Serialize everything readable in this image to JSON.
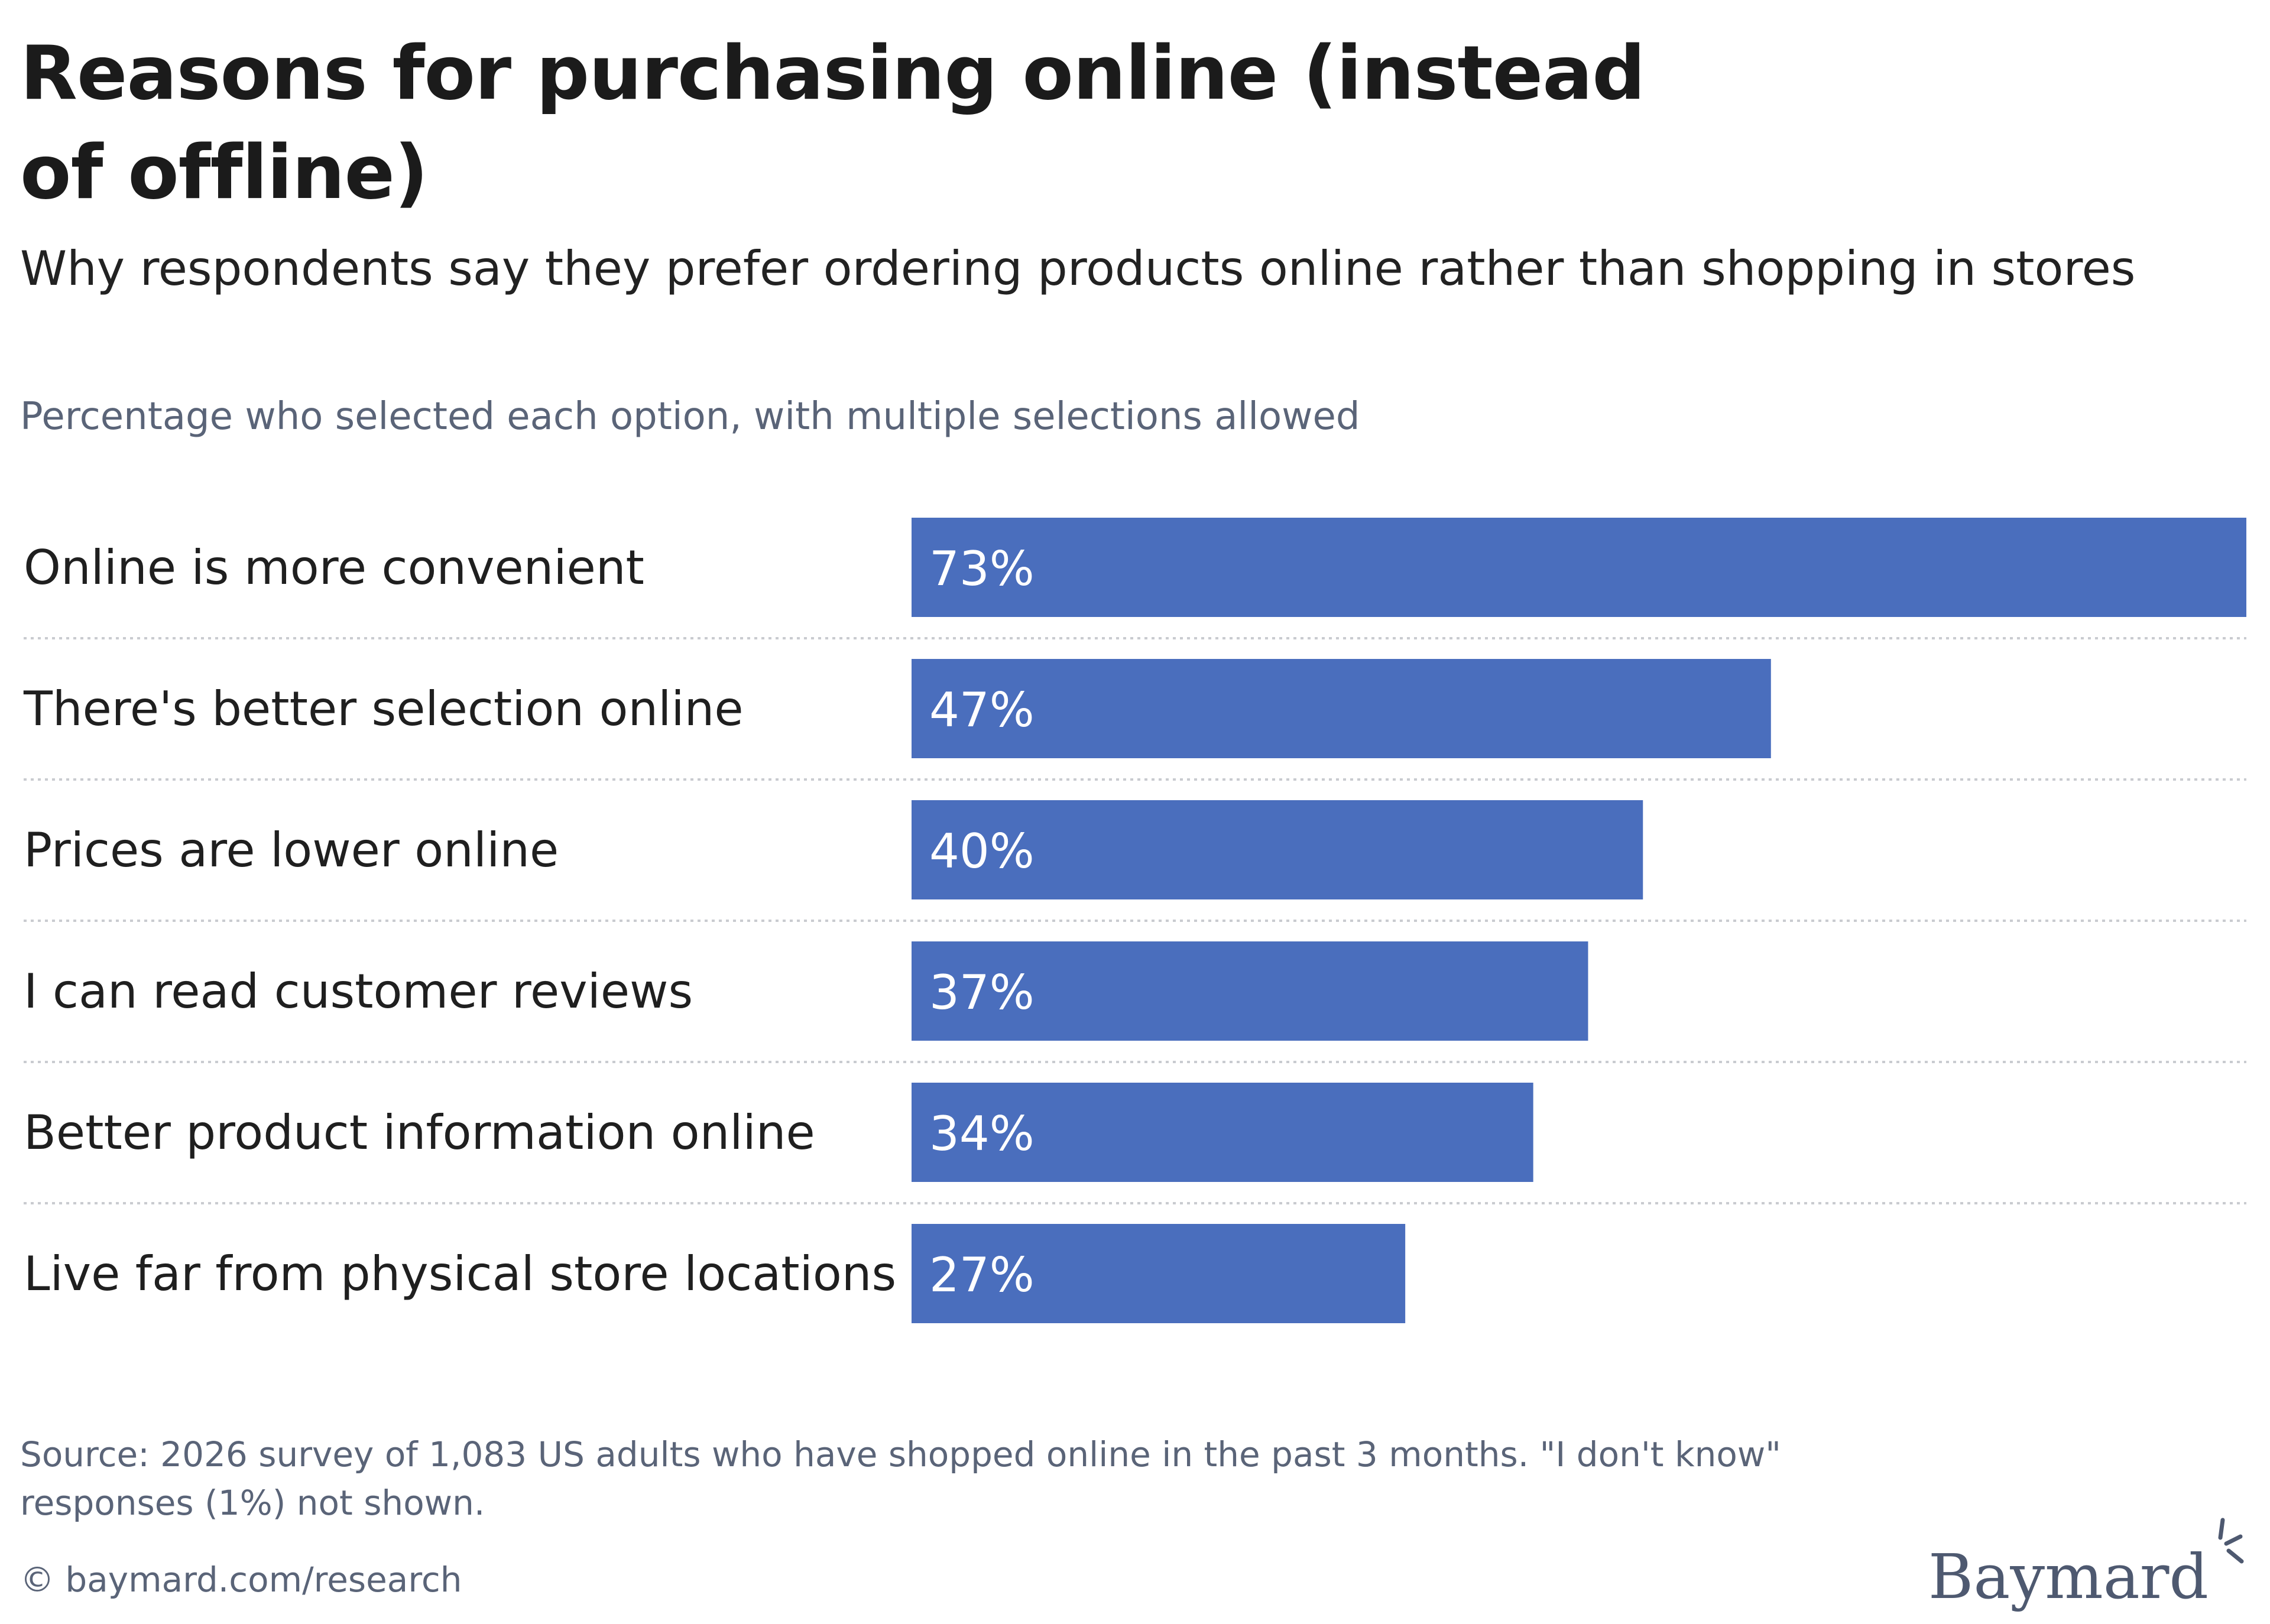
{
  "title": "Reasons for purchasing online (instead of offline)",
  "subtitle": "Why respondents say they prefer ordering products online rather than shopping in stores",
  "note": "Percentage who selected each option, with multiple selections allowed",
  "source": "Source: 2026 survey of 1,083 US adults who have shopped online in the past 3 months. \"I don't know\" responses (1%) not shown.",
  "credit": "© baymard.com/research",
  "brand": {
    "name": "Baymard",
    "icon": "baymard-spark-logo"
  },
  "colors": {
    "bar": "#4a6ebd",
    "value_text": "#ffffff",
    "divider": "#c9cbd0"
  },
  "chart_data": {
    "type": "bar",
    "orientation": "horizontal",
    "categories": [
      "Online is more convenient",
      "There's better selection online",
      "Prices are lower online",
      "I can read customer reviews",
      "Better product information online",
      "Live far from physical store locations"
    ],
    "values": [
      73,
      47,
      40,
      37,
      34,
      27
    ],
    "value_labels": [
      "73%",
      "47%",
      "40%",
      "37%",
      "34%",
      "27%"
    ],
    "unit": "%",
    "xlim": [
      0,
      73
    ],
    "grid": false
  }
}
